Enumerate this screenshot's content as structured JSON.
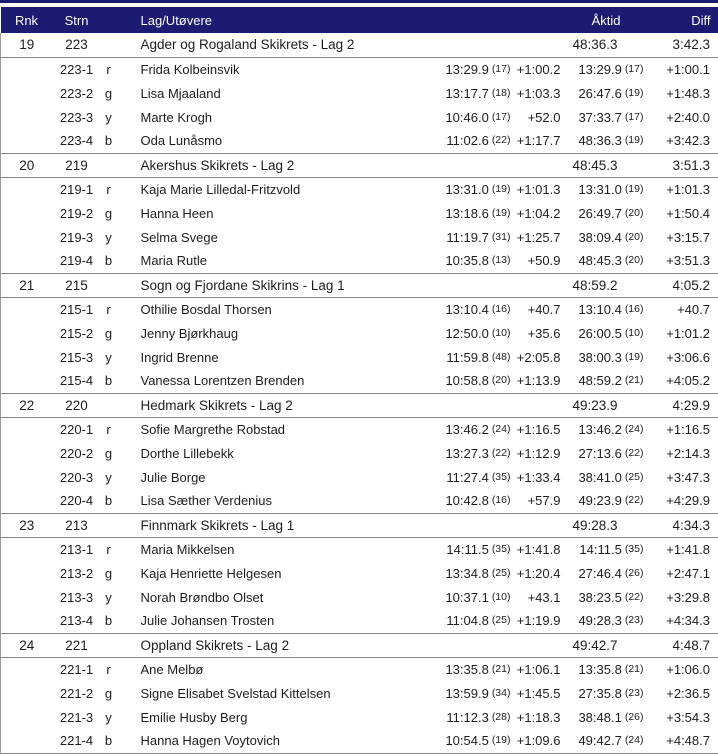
{
  "colors": {
    "header_bg": "#1b1b72",
    "header_text": "#ffffff",
    "row_text": "#1e1e1e",
    "line": "#858585"
  },
  "header": {
    "rnk": "Rnk",
    "strn": "Strn",
    "team": "Lag/Utøvere",
    "aktid": "Åktid",
    "diff": "Diff"
  },
  "teams": [
    {
      "rank": "19",
      "strn": "223",
      "name": "Agder og Rogaland Skikrets - Lag 2",
      "aktid": "48:36.3",
      "diff": "3:42.3",
      "legs": [
        {
          "id": "223-1",
          "letter": "r",
          "name": "Frida Kolbeinsvik",
          "leg_time": "13:29.9",
          "leg_rank": "(17)",
          "leg_diff": "+1:00.2",
          "cum_time": "13:29.9",
          "cum_rank": "(17)",
          "cum_diff": "+1:00.1"
        },
        {
          "id": "223-2",
          "letter": "g",
          "name": "Lisa Mjaaland",
          "leg_time": "13:17.7",
          "leg_rank": "(18)",
          "leg_diff": "+1:03.3",
          "cum_time": "26:47.6",
          "cum_rank": "(19)",
          "cum_diff": "+1:48.3"
        },
        {
          "id": "223-3",
          "letter": "y",
          "name": "Marte Krogh",
          "leg_time": "10:46.0",
          "leg_rank": "(17)",
          "leg_diff": "+52.0",
          "cum_time": "37:33.7",
          "cum_rank": "(17)",
          "cum_diff": "+2:40.0"
        },
        {
          "id": "223-4",
          "letter": "b",
          "name": "Oda Lunåsmo",
          "leg_time": "11:02.6",
          "leg_rank": "(22)",
          "leg_diff": "+1:17.7",
          "cum_time": "48:36.3",
          "cum_rank": "(19)",
          "cum_diff": "+3:42.3"
        }
      ]
    },
    {
      "rank": "20",
      "strn": "219",
      "name": "Akershus Skikrets - Lag 2",
      "aktid": "48:45.3",
      "diff": "3:51.3",
      "legs": [
        {
          "id": "219-1",
          "letter": "r",
          "name": "Kaja Marie Lilledal-Fritzvold",
          "leg_time": "13:31.0",
          "leg_rank": "(19)",
          "leg_diff": "+1:01.3",
          "cum_time": "13:31.0",
          "cum_rank": "(19)",
          "cum_diff": "+1:01.3"
        },
        {
          "id": "219-2",
          "letter": "g",
          "name": "Hanna Heen",
          "leg_time": "13:18.6",
          "leg_rank": "(19)",
          "leg_diff": "+1:04.2",
          "cum_time": "26:49.7",
          "cum_rank": "(20)",
          "cum_diff": "+1:50.4"
        },
        {
          "id": "219-3",
          "letter": "y",
          "name": "Selma Svege",
          "leg_time": "11:19.7",
          "leg_rank": "(31)",
          "leg_diff": "+1:25.7",
          "cum_time": "38:09.4",
          "cum_rank": "(20)",
          "cum_diff": "+3:15.7"
        },
        {
          "id": "219-4",
          "letter": "b",
          "name": "Maria Rutle",
          "leg_time": "10:35.8",
          "leg_rank": "(13)",
          "leg_diff": "+50.9",
          "cum_time": "48:45.3",
          "cum_rank": "(20)",
          "cum_diff": "+3:51.3"
        }
      ]
    },
    {
      "rank": "21",
      "strn": "215",
      "name": "Sogn og Fjordane Skikrins - Lag 1",
      "aktid": "48:59.2",
      "diff": "4:05.2",
      "legs": [
        {
          "id": "215-1",
          "letter": "r",
          "name": "Othilie Bosdal Thorsen",
          "leg_time": "13:10.4",
          "leg_rank": "(16)",
          "leg_diff": "+40.7",
          "cum_time": "13:10.4",
          "cum_rank": "(16)",
          "cum_diff": "+40.7"
        },
        {
          "id": "215-2",
          "letter": "g",
          "name": "Jenny Bjørkhaug",
          "leg_time": "12:50.0",
          "leg_rank": "(10)",
          "leg_diff": "+35.6",
          "cum_time": "26:00.5",
          "cum_rank": "(10)",
          "cum_diff": "+1:01.2"
        },
        {
          "id": "215-3",
          "letter": "y",
          "name": "Ingrid Brenne",
          "leg_time": "11:59.8",
          "leg_rank": "(48)",
          "leg_diff": "+2:05.8",
          "cum_time": "38:00.3",
          "cum_rank": "(19)",
          "cum_diff": "+3:06.6"
        },
        {
          "id": "215-4",
          "letter": "b",
          "name": "Vanessa Lorentzen Brenden",
          "leg_time": "10:58.8",
          "leg_rank": "(20)",
          "leg_diff": "+1:13.9",
          "cum_time": "48:59.2",
          "cum_rank": "(21)",
          "cum_diff": "+4:05.2"
        }
      ]
    },
    {
      "rank": "22",
      "strn": "220",
      "name": "Hedmark Skikrets - Lag 2",
      "aktid": "49:23.9",
      "diff": "4:29.9",
      "legs": [
        {
          "id": "220-1",
          "letter": "r",
          "name": "Sofie Margrethe Robstad",
          "leg_time": "13:46.2",
          "leg_rank": "(24)",
          "leg_diff": "+1:16.5",
          "cum_time": "13:46.2",
          "cum_rank": "(24)",
          "cum_diff": "+1:16.5"
        },
        {
          "id": "220-2",
          "letter": "g",
          "name": "Dorthe Lillebekk",
          "leg_time": "13:27.3",
          "leg_rank": "(22)",
          "leg_diff": "+1:12.9",
          "cum_time": "27:13.6",
          "cum_rank": "(22)",
          "cum_diff": "+2:14.3"
        },
        {
          "id": "220-3",
          "letter": "y",
          "name": "Julie Borge",
          "leg_time": "11:27.4",
          "leg_rank": "(35)",
          "leg_diff": "+1:33.4",
          "cum_time": "38:41.0",
          "cum_rank": "(25)",
          "cum_diff": "+3:47.3"
        },
        {
          "id": "220-4",
          "letter": "b",
          "name": "Lisa Sæther Verdenius",
          "leg_time": "10:42.8",
          "leg_rank": "(16)",
          "leg_diff": "+57.9",
          "cum_time": "49:23.9",
          "cum_rank": "(22)",
          "cum_diff": "+4:29.9"
        }
      ]
    },
    {
      "rank": "23",
      "strn": "213",
      "name": "Finnmark Skikrets - Lag 1",
      "aktid": "49:28.3",
      "diff": "4:34.3",
      "legs": [
        {
          "id": "213-1",
          "letter": "r",
          "name": "Maria Mikkelsen",
          "leg_time": "14:11.5",
          "leg_rank": "(35)",
          "leg_diff": "+1:41.8",
          "cum_time": "14:11.5",
          "cum_rank": "(35)",
          "cum_diff": "+1:41.8"
        },
        {
          "id": "213-2",
          "letter": "g",
          "name": "Kaja Henriette Helgesen",
          "leg_time": "13:34.8",
          "leg_rank": "(25)",
          "leg_diff": "+1:20.4",
          "cum_time": "27:46.4",
          "cum_rank": "(26)",
          "cum_diff": "+2:47.1"
        },
        {
          "id": "213-3",
          "letter": "y",
          "name": "Norah Brøndbo Olset",
          "leg_time": "10:37.1",
          "leg_rank": "(10)",
          "leg_diff": "+43.1",
          "cum_time": "38:23.5",
          "cum_rank": "(22)",
          "cum_diff": "+3:29.8"
        },
        {
          "id": "213-4",
          "letter": "b",
          "name": "Julie Johansen Trosten",
          "leg_time": "11:04.8",
          "leg_rank": "(25)",
          "leg_diff": "+1:19.9",
          "cum_time": "49:28.3",
          "cum_rank": "(23)",
          "cum_diff": "+4:34.3"
        }
      ]
    },
    {
      "rank": "24",
      "strn": "221",
      "name": "Oppland Skikrets - Lag 2",
      "aktid": "49:42.7",
      "diff": "4:48.7",
      "legs": [
        {
          "id": "221-1",
          "letter": "r",
          "name": "Ane Melbø",
          "leg_time": "13:35.8",
          "leg_rank": "(21)",
          "leg_diff": "+1:06.1",
          "cum_time": "13:35.8",
          "cum_rank": "(21)",
          "cum_diff": "+1:06.0"
        },
        {
          "id": "221-2",
          "letter": "g",
          "name": "Signe Elisabet Svelstad Kittelsen",
          "leg_time": "13:59.9",
          "leg_rank": "(34)",
          "leg_diff": "+1:45.5",
          "cum_time": "27:35.8",
          "cum_rank": "(23)",
          "cum_diff": "+2:36.5"
        },
        {
          "id": "221-3",
          "letter": "y",
          "name": "Emilie Husby Berg",
          "leg_time": "11:12.3",
          "leg_rank": "(28)",
          "leg_diff": "+1:18.3",
          "cum_time": "38:48.1",
          "cum_rank": "(26)",
          "cum_diff": "+3:54.3"
        },
        {
          "id": "221-4",
          "letter": "b",
          "name": "Hanna Hagen Voytovich",
          "leg_time": "10:54.5",
          "leg_rank": "(19)",
          "leg_diff": "+1:09.6",
          "cum_time": "49:42.7",
          "cum_rank": "(24)",
          "cum_diff": "+4:48.7"
        }
      ]
    }
  ]
}
